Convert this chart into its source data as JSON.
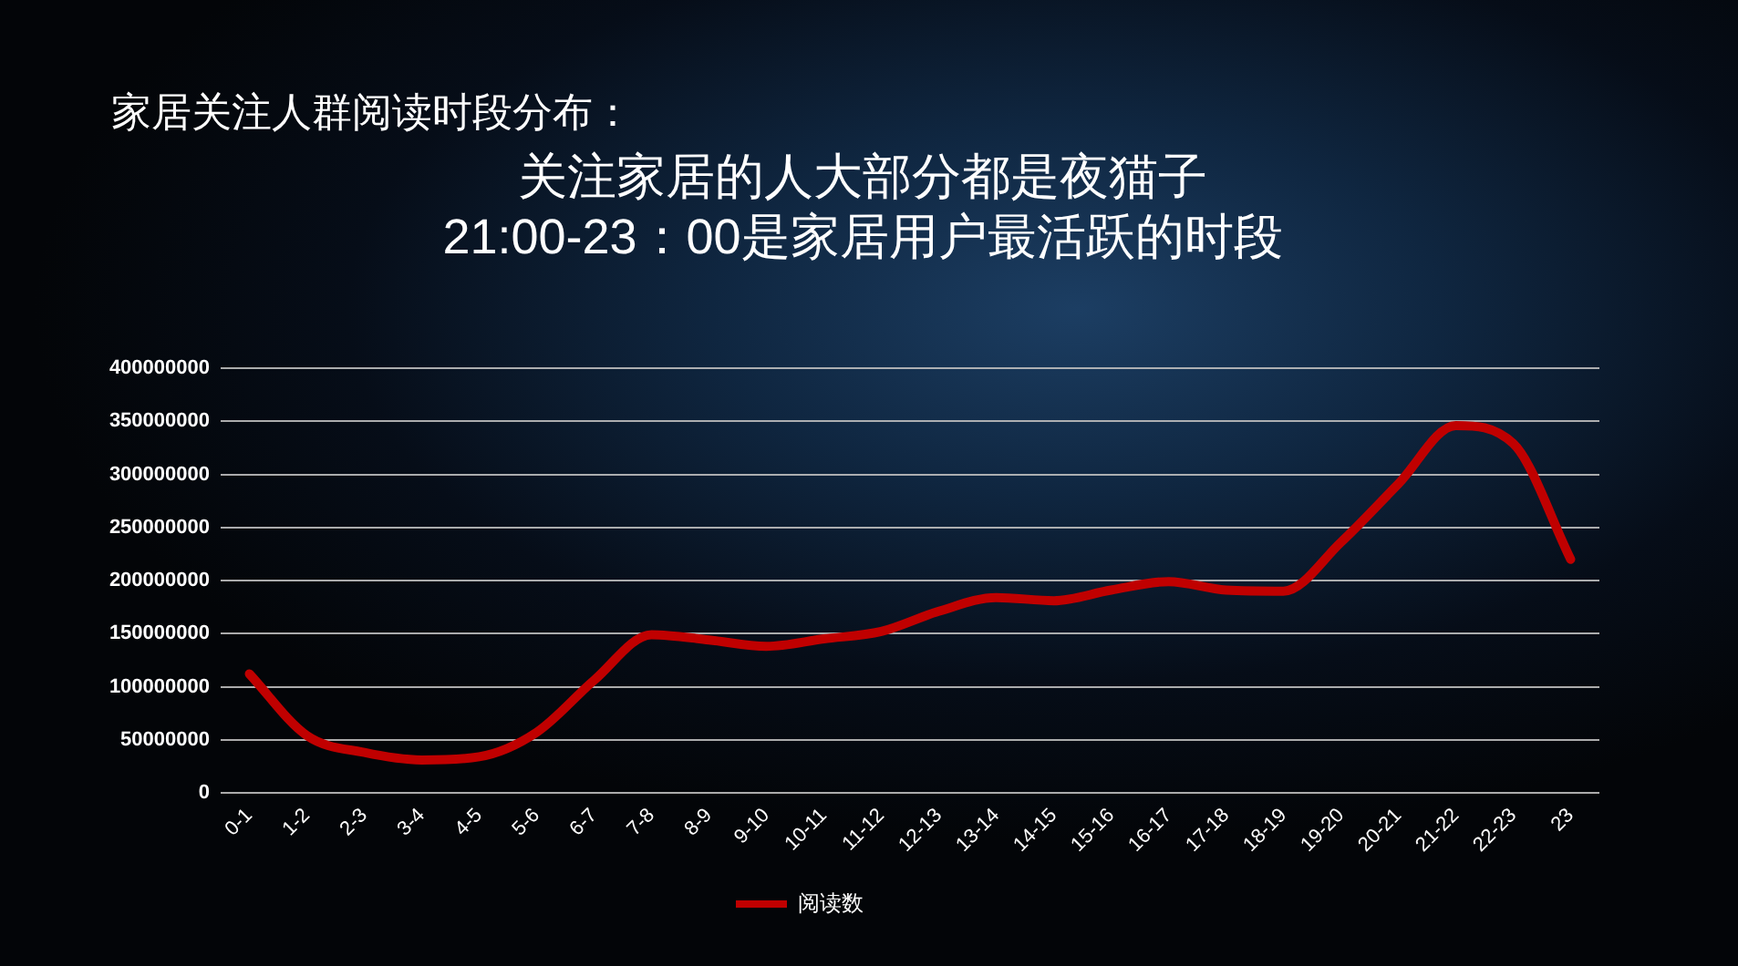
{
  "chart_data": {
    "type": "line",
    "title": "家居关注人群阅读时段分布：",
    "subtitle": "关注家居的人大部分都是夜猫子",
    "annotations": [
      "21:00-23：00是家居用户最活跃的时段"
    ],
    "categories": [
      "0-1",
      "1-2",
      "2-3",
      "3-4",
      "4-5",
      "5-6",
      "6-7",
      "7-8",
      "8-9",
      "9-10",
      "10-11",
      "11-12",
      "12-13",
      "13-14",
      "14-15",
      "15-16",
      "16-17",
      "17-18",
      "18-19",
      "19-20",
      "20-21",
      "21-22",
      "22-23",
      "23"
    ],
    "series": [
      {
        "name": "阅读数",
        "color": "#c00000",
        "values": [
          112000000,
          54000000,
          38000000,
          31000000,
          34000000,
          57000000,
          106000000,
          149000000,
          144000000,
          138000000,
          145000000,
          152000000,
          171000000,
          184000000,
          181000000,
          191000000,
          199000000,
          191000000,
          190000000,
          236000000,
          291000000,
          346000000,
          329000000,
          220000000
        ]
      }
    ],
    "ylim": [
      0,
      400000000
    ],
    "yticks": [
      0,
      50000000,
      100000000,
      150000000,
      200000000,
      250000000,
      300000000,
      350000000,
      400000000
    ],
    "grid": "y",
    "legend": "bottom",
    "marker": "none",
    "line_style": "solid"
  }
}
